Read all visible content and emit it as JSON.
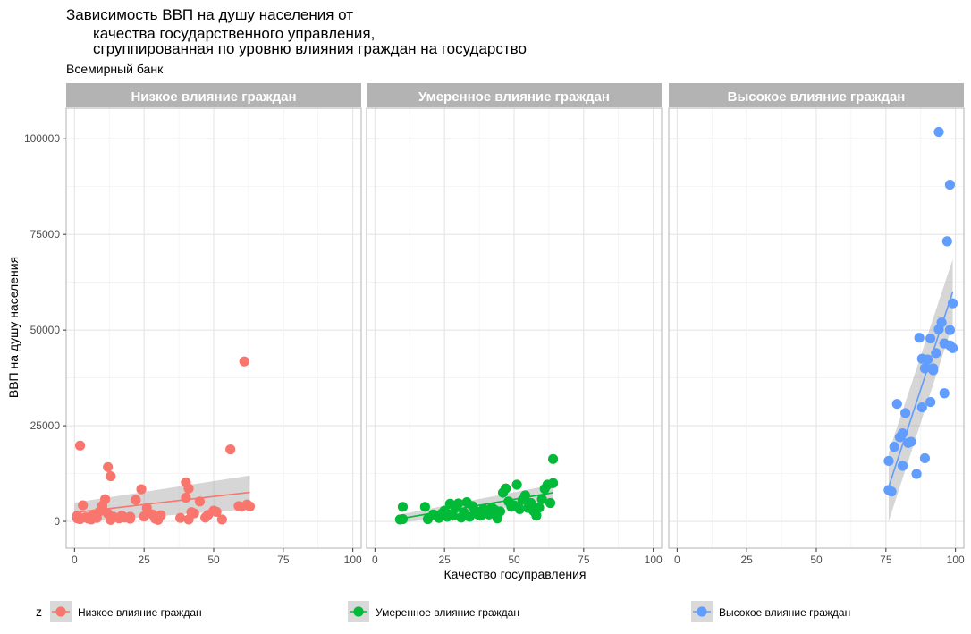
{
  "chart_data": {
    "type": "scatter",
    "title_lines": [
      "Зависимость ВВП на душу населения от",
      "качества государственного управления,",
      "сгруппированная по уровню влияния граждан на государство"
    ],
    "subtitle": "Всемирный банк",
    "xlabel": "Качество госуправления",
    "ylabel": "ВВП на душу населения",
    "xlim": [
      -3,
      103
    ],
    "ylim": [
      -7000,
      108000
    ],
    "x_ticks": [
      0,
      25,
      50,
      75,
      100
    ],
    "y_ticks": [
      0,
      25000,
      50000,
      75000,
      100000
    ],
    "grid": true,
    "facet_strip_color": "#b3b3b3",
    "legend": {
      "title": "z",
      "position": "bottom"
    },
    "panels": [
      {
        "label": "Низкое влияние граждан",
        "color": "#f8766d",
        "trend": {
          "x0": 0,
          "y0": 2300,
          "x1": 63,
          "y1": 7600,
          "band_at_x0": 2600,
          "band_at_x1": 4400
        },
        "points": [
          [
            2,
            19800
          ],
          [
            1,
            1500
          ],
          [
            1,
            800
          ],
          [
            2,
            600
          ],
          [
            3,
            4200
          ],
          [
            4,
            1000
          ],
          [
            5,
            700
          ],
          [
            6,
            500
          ],
          [
            6,
            1300
          ],
          [
            7,
            1800
          ],
          [
            8,
            900
          ],
          [
            9,
            2600
          ],
          [
            10,
            3200
          ],
          [
            10,
            4100
          ],
          [
            11,
            5800
          ],
          [
            12,
            14200
          ],
          [
            13,
            11800
          ],
          [
            12,
            2000
          ],
          [
            14,
            1200
          ],
          [
            13,
            400
          ],
          [
            16,
            800
          ],
          [
            17,
            1500
          ],
          [
            18,
            1000
          ],
          [
            20,
            700
          ],
          [
            20,
            1200
          ],
          [
            22,
            5600
          ],
          [
            24,
            8400
          ],
          [
            25,
            1300
          ],
          [
            26,
            3500
          ],
          [
            28,
            1800
          ],
          [
            29,
            700
          ],
          [
            31,
            1600
          ],
          [
            30,
            400
          ],
          [
            38,
            900
          ],
          [
            40,
            6200
          ],
          [
            40,
            10200
          ],
          [
            41,
            8600
          ],
          [
            41,
            500
          ],
          [
            42,
            2400
          ],
          [
            43,
            2100
          ],
          [
            45,
            5200
          ],
          [
            47,
            1000
          ],
          [
            48,
            1700
          ],
          [
            50,
            2800
          ],
          [
            51,
            2500
          ],
          [
            53,
            500
          ],
          [
            56,
            18800
          ],
          [
            59,
            4000
          ],
          [
            60,
            3800
          ],
          [
            61,
            41800
          ],
          [
            62,
            4400
          ],
          [
            63,
            3900
          ]
        ]
      },
      {
        "label": "Умеренное влияние граждан",
        "color": "#00ba38",
        "trend": {
          "x0": 9,
          "y0": 700,
          "x1": 64,
          "y1": 7500,
          "band_at_x0": 1100,
          "band_at_x1": 2100
        },
        "points": [
          [
            9,
            500
          ],
          [
            10,
            3800
          ],
          [
            10,
            600
          ],
          [
            18,
            3800
          ],
          [
            19,
            600
          ],
          [
            21,
            1800
          ],
          [
            23,
            900
          ],
          [
            24,
            2000
          ],
          [
            25,
            2800
          ],
          [
            26,
            1200
          ],
          [
            27,
            4600
          ],
          [
            28,
            1500
          ],
          [
            29,
            3500
          ],
          [
            30,
            4700
          ],
          [
            31,
            1000
          ],
          [
            32,
            2300
          ],
          [
            33,
            5000
          ],
          [
            34,
            1200
          ],
          [
            35,
            4000
          ],
          [
            36,
            2800
          ],
          [
            37,
            1800
          ],
          [
            38,
            1500
          ],
          [
            39,
            3200
          ],
          [
            40,
            2500
          ],
          [
            41,
            1800
          ],
          [
            42,
            3600
          ],
          [
            43,
            3000
          ],
          [
            44,
            800
          ],
          [
            45,
            2600
          ],
          [
            46,
            7500
          ],
          [
            47,
            8600
          ],
          [
            48,
            5200
          ],
          [
            49,
            3800
          ],
          [
            50,
            4200
          ],
          [
            51,
            9600
          ],
          [
            52,
            3200
          ],
          [
            53,
            5600
          ],
          [
            54,
            6800
          ],
          [
            55,
            3500
          ],
          [
            56,
            4800
          ],
          [
            57,
            2700
          ],
          [
            58,
            1500
          ],
          [
            59,
            3600
          ],
          [
            60,
            5800
          ],
          [
            61,
            8500
          ],
          [
            62,
            9600
          ],
          [
            63,
            4800
          ],
          [
            64,
            16300
          ],
          [
            64,
            10000
          ]
        ]
      },
      {
        "label": "Высокое влияние граждан",
        "color": "#619cff",
        "trend": {
          "x0": 76,
          "y0": 9000,
          "x1": 99,
          "y1": 60000,
          "band_at_x0": 9000,
          "band_at_x1": 8500
        },
        "points": [
          [
            76,
            8200
          ],
          [
            76,
            15800
          ],
          [
            77,
            7800
          ],
          [
            78,
            19500
          ],
          [
            79,
            30700
          ],
          [
            80,
            22000
          ],
          [
            81,
            23000
          ],
          [
            81,
            14500
          ],
          [
            82,
            28300
          ],
          [
            83,
            20500
          ],
          [
            84,
            20800
          ],
          [
            86,
            12400
          ],
          [
            87,
            48000
          ],
          [
            88,
            42500
          ],
          [
            88,
            29800
          ],
          [
            89,
            40000
          ],
          [
            89,
            16500
          ],
          [
            90,
            42300
          ],
          [
            91,
            31200
          ],
          [
            91,
            47800
          ],
          [
            92,
            40000
          ],
          [
            92,
            39500
          ],
          [
            93,
            44000
          ],
          [
            94,
            50200
          ],
          [
            94,
            101800
          ],
          [
            95,
            52000
          ],
          [
            96,
            46500
          ],
          [
            96,
            33500
          ],
          [
            97,
            73200
          ],
          [
            98,
            46000
          ],
          [
            98,
            88000
          ],
          [
            98,
            50000
          ],
          [
            99,
            57000
          ],
          [
            99,
            45300
          ]
        ]
      }
    ]
  }
}
